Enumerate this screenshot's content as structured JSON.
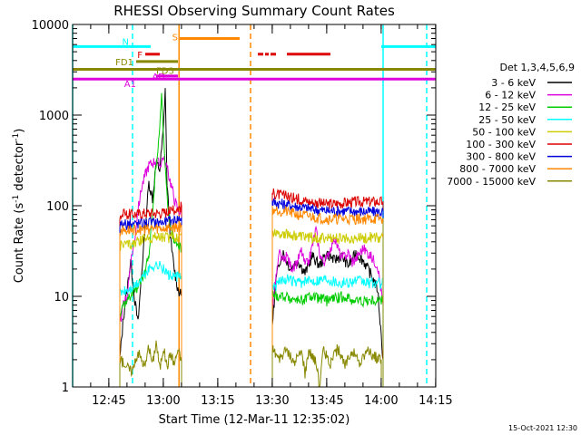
{
  "chart_data": {
    "type": "line",
    "title": "RHESSI Observing Summary Count Rates",
    "xlabel": "Start Time (12-Mar-11 12:35:02)",
    "ylabel_main": "Count Rate (s",
    "ylabel_sup1": "-1",
    "ylabel_mid": " detector",
    "ylabel_sup2": "-1",
    "ylabel_end": ")",
    "yscale": "log",
    "ylim": [
      1,
      10000
    ],
    "y_ticks": [
      {
        "value": 1,
        "label": "1"
      },
      {
        "value": 10,
        "label": "10"
      },
      {
        "value": 100,
        "label": "100"
      },
      {
        "value": 1000,
        "label": "1000"
      },
      {
        "value": 10000,
        "label": "10000"
      }
    ],
    "xlim_minutes": [
      0,
      100
    ],
    "x_ticks": [
      {
        "value": 9.97,
        "label": "12:45"
      },
      {
        "value": 24.97,
        "label": "13:00"
      },
      {
        "value": 39.97,
        "label": "13:15"
      },
      {
        "value": 54.97,
        "label": "13:30"
      },
      {
        "value": 69.97,
        "label": "13:45"
      },
      {
        "value": 84.97,
        "label": "14:00"
      },
      {
        "value": 99.97,
        "label": "14:15"
      }
    ],
    "legend_title": "Det 1,3,4,5,6,9",
    "legend_position": "right",
    "series": [
      {
        "name": "3 - 6 keV",
        "color": "#000000",
        "segments": [
          [
            [
              13,
              2
            ],
            [
              14,
              6
            ],
            [
              15,
              12
            ],
            [
              16,
              25
            ],
            [
              17,
              10
            ],
            [
              18,
              5
            ],
            [
              19,
              18
            ],
            [
              20,
              60
            ],
            [
              21,
              180
            ],
            [
              22,
              120
            ],
            [
              23,
              300
            ],
            [
              24,
              250
            ],
            [
              25,
              700
            ],
            [
              25.5,
              2000
            ],
            [
              26,
              180
            ],
            [
              27,
              40
            ],
            [
              28,
              20
            ],
            [
              29,
              12
            ],
            [
              30,
              10
            ]
          ],
          [
            [
              55,
              5
            ],
            [
              56,
              15
            ],
            [
              57,
              25
            ],
            [
              58,
              30
            ],
            [
              60,
              20
            ],
            [
              62,
              25
            ],
            [
              64,
              18
            ],
            [
              66,
              28
            ],
            [
              68,
              22
            ],
            [
              70,
              30
            ],
            [
              72,
              25
            ],
            [
              74,
              28
            ],
            [
              76,
              22
            ],
            [
              78,
              30
            ],
            [
              80,
              25
            ],
            [
              82,
              18
            ],
            [
              84,
              12
            ],
            [
              85.5,
              2
            ]
          ]
        ]
      },
      {
        "name": "6 - 12 keV",
        "color": "#dd00dd",
        "segments": [
          [
            [
              13,
              5
            ],
            [
              14,
              8
            ],
            [
              15,
              10
            ],
            [
              16,
              25
            ],
            [
              17,
              40
            ],
            [
              18,
              90
            ],
            [
              19,
              160
            ],
            [
              20,
              220
            ],
            [
              21,
              280
            ],
            [
              22,
              300
            ],
            [
              23,
              320
            ],
            [
              24,
              280
            ],
            [
              25,
              350
            ],
            [
              26,
              260
            ],
            [
              27,
              180
            ],
            [
              28,
              120
            ],
            [
              29,
              90
            ],
            [
              30,
              85
            ]
          ],
          [
            [
              55,
              8
            ],
            [
              56,
              16
            ],
            [
              57,
              30
            ],
            [
              58,
              24
            ],
            [
              59,
              28
            ],
            [
              60,
              22
            ],
            [
              61,
              20
            ],
            [
              62,
              25
            ],
            [
              63,
              32
            ],
            [
              64,
              22
            ],
            [
              65,
              24
            ],
            [
              66,
              36
            ],
            [
              67,
              55
            ],
            [
              68,
              30
            ],
            [
              69,
              24
            ],
            [
              70,
              26
            ],
            [
              72,
              45
            ],
            [
              73,
              35
            ],
            [
              74,
              26
            ],
            [
              76,
              30
            ],
            [
              77,
              24
            ],
            [
              78,
              26
            ],
            [
              80,
              34
            ],
            [
              82,
              28
            ],
            [
              84,
              22
            ],
            [
              85.5,
              8
            ]
          ]
        ]
      },
      {
        "name": "12 - 25 keV",
        "color": "#00cc00",
        "segments": [
          [
            [
              13,
              6
            ],
            [
              14,
              8
            ],
            [
              16,
              10
            ],
            [
              18,
              13
            ],
            [
              20,
              18
            ],
            [
              21,
              30
            ],
            [
              22,
              80
            ],
            [
              23,
              300
            ],
            [
              24,
              700
            ],
            [
              24.5,
              1800
            ],
            [
              25,
              600
            ],
            [
              26,
              120
            ],
            [
              27,
              60
            ],
            [
              28,
              40
            ],
            [
              29,
              35
            ],
            [
              30,
              34
            ]
          ],
          [
            [
              55,
              10
            ],
            [
              58,
              10
            ],
            [
              62,
              9
            ],
            [
              66,
              10
            ],
            [
              70,
              9
            ],
            [
              74,
              10
            ],
            [
              78,
              9
            ],
            [
              82,
              9
            ],
            [
              85.5,
              9
            ]
          ]
        ]
      },
      {
        "name": "25 - 50 keV",
        "color": "#00ffff",
        "segments": [
          [
            [
              13,
              11
            ],
            [
              16,
              12
            ],
            [
              18,
              14
            ],
            [
              20,
              18
            ],
            [
              22,
              22
            ],
            [
              24,
              22
            ],
            [
              26,
              18
            ],
            [
              28,
              16
            ],
            [
              30,
              17
            ]
          ],
          [
            [
              55,
              12
            ],
            [
              58,
              16
            ],
            [
              62,
              14
            ],
            [
              66,
              15
            ],
            [
              70,
              16
            ],
            [
              74,
              14
            ],
            [
              78,
              15
            ],
            [
              82,
              14
            ],
            [
              85.5,
              14
            ]
          ]
        ]
      },
      {
        "name": "50 - 100 keV",
        "color": "#cccc00",
        "segments": [
          [
            [
              13,
              37
            ],
            [
              16,
              38
            ],
            [
              18,
              40
            ],
            [
              20,
              44
            ],
            [
              22,
              45
            ],
            [
              24,
              46
            ],
            [
              26,
              45
            ],
            [
              28,
              45
            ],
            [
              30,
              47
            ]
          ],
          [
            [
              55,
              52
            ],
            [
              58,
              50
            ],
            [
              62,
              46
            ],
            [
              66,
              45
            ],
            [
              70,
              44
            ],
            [
              74,
              44
            ],
            [
              78,
              44
            ],
            [
              82,
              45
            ],
            [
              85.5,
              45
            ]
          ]
        ]
      },
      {
        "name": "100 - 300 keV",
        "color": "#dd0000",
        "segments": [
          [
            [
              13,
              80
            ],
            [
              16,
              82
            ],
            [
              18,
              82
            ],
            [
              20,
              84
            ],
            [
              22,
              84
            ],
            [
              24,
              84
            ],
            [
              26,
              86
            ],
            [
              28,
              90
            ],
            [
              30,
              100
            ]
          ],
          [
            [
              55,
              140
            ],
            [
              58,
              130
            ],
            [
              62,
              120
            ],
            [
              66,
              110
            ],
            [
              70,
              105
            ],
            [
              74,
              108
            ],
            [
              78,
              112
            ],
            [
              82,
              112
            ],
            [
              85.5,
              112
            ]
          ]
        ]
      },
      {
        "name": "300 - 800 keV",
        "color": "#0000dd",
        "segments": [
          [
            [
              13,
              62
            ],
            [
              16,
              63
            ],
            [
              18,
              64
            ],
            [
              20,
              65
            ],
            [
              22,
              66
            ],
            [
              24,
              66
            ],
            [
              26,
              67
            ],
            [
              28,
              70
            ],
            [
              30,
              75
            ]
          ],
          [
            [
              55,
              110
            ],
            [
              58,
              105
            ],
            [
              62,
              98
            ],
            [
              66,
              92
            ],
            [
              70,
              88
            ],
            [
              74,
              88
            ],
            [
              78,
              87
            ],
            [
              82,
              86
            ],
            [
              85.5,
              86
            ]
          ]
        ]
      },
      {
        "name": "800 - 7000 keV",
        "color": "#ff8800",
        "segments": [
          [
            [
              13,
              53
            ],
            [
              16,
              54
            ],
            [
              18,
              55
            ],
            [
              20,
              55
            ],
            [
              22,
              56
            ],
            [
              24,
              56
            ],
            [
              26,
              57
            ],
            [
              28,
              58
            ],
            [
              30,
              60
            ]
          ],
          [
            [
              55,
              92
            ],
            [
              58,
              88
            ],
            [
              62,
              80
            ],
            [
              66,
              76
            ],
            [
              70,
              72
            ],
            [
              74,
              72
            ],
            [
              78,
              72
            ],
            [
              82,
              72
            ],
            [
              85.5,
              72
            ]
          ]
        ]
      },
      {
        "name": "7000 - 15000 keV",
        "color": "#888800",
        "segments": [
          [
            [
              13,
              1.9
            ],
            [
              14,
              1.9
            ],
            [
              16,
              1.5
            ],
            [
              17,
              1.7
            ],
            [
              18,
              2.5
            ],
            [
              19,
              2
            ],
            [
              20,
              1.7
            ],
            [
              21,
              2.8
            ],
            [
              22,
              1.8
            ],
            [
              23,
              3.2
            ],
            [
              24,
              1.6
            ],
            [
              25,
              2.8
            ],
            [
              26,
              1.7
            ],
            [
              27,
              2.4
            ],
            [
              28,
              1.8
            ],
            [
              29,
              2.6
            ],
            [
              30,
              1.9
            ]
          ],
          [
            [
              55,
              2.7
            ],
            [
              57,
              2
            ],
            [
              59,
              2.6
            ],
            [
              61,
              1.8
            ],
            [
              63,
              2.5
            ],
            [
              64,
              1.4
            ],
            [
              65,
              2.6
            ],
            [
              67,
              1.9
            ],
            [
              68,
              1
            ],
            [
              69,
              2.6
            ],
            [
              71,
              1.8
            ],
            [
              73,
              2.7
            ],
            [
              75,
              1.7
            ],
            [
              77,
              2.6
            ],
            [
              79,
              1.8
            ],
            [
              81,
              2.5
            ],
            [
              83,
              2.2
            ],
            [
              85,
              2
            ]
          ]
        ]
      }
    ],
    "state_bars": [
      {
        "label": "N",
        "color": "#00ffff",
        "y": 5700,
        "segments": [
          [
            0,
            21.5
          ],
          [
            85,
            100
          ]
        ]
      },
      {
        "label": "F",
        "color": "#dd0000",
        "y": 4700,
        "segments": [
          [
            20,
            24
          ]
        ]
      },
      {
        "label": "S",
        "color": "#ff8800",
        "y": 7000,
        "segments": [
          [
            29.5,
            46
          ]
        ]
      },
      {
        "label": "",
        "color": "#dd0000",
        "y": 4700,
        "segments": [
          [
            51,
            52.5
          ],
          [
            53,
            54
          ],
          [
            54.5,
            56
          ],
          [
            59,
            71
          ]
        ]
      },
      {
        "label": "FD1",
        "color": "#888800",
        "y": 3900,
        "segments": [
          [
            17.5,
            29
          ]
        ]
      },
      {
        "label": "FD3",
        "color": "#888800",
        "y": 3200,
        "segments": [
          [
            0,
            100
          ]
        ]
      },
      {
        "label": "AD",
        "color": "#dd00dd",
        "y": 2700,
        "segments": [
          [
            23,
            29
          ]
        ]
      },
      {
        "label": "A1",
        "color": "#dd00dd",
        "y": 2500,
        "segments": [
          [
            0,
            100
          ]
        ]
      }
    ],
    "vertical_lines": [
      {
        "color": "#00ffff",
        "x": 0,
        "dashed": false
      },
      {
        "color": "#00ffff",
        "x": 16.5,
        "dashed": true
      },
      {
        "color": "#ff8800",
        "x": 29.3,
        "dashed": false
      },
      {
        "color": "#ff8800",
        "x": 49.0,
        "dashed": true
      },
      {
        "color": "#00ffff",
        "x": 85.5,
        "dashed": false
      },
      {
        "color": "#00ffff",
        "x": 97.5,
        "dashed": true
      }
    ],
    "timestamp": "15-Oct-2021 12:30"
  }
}
